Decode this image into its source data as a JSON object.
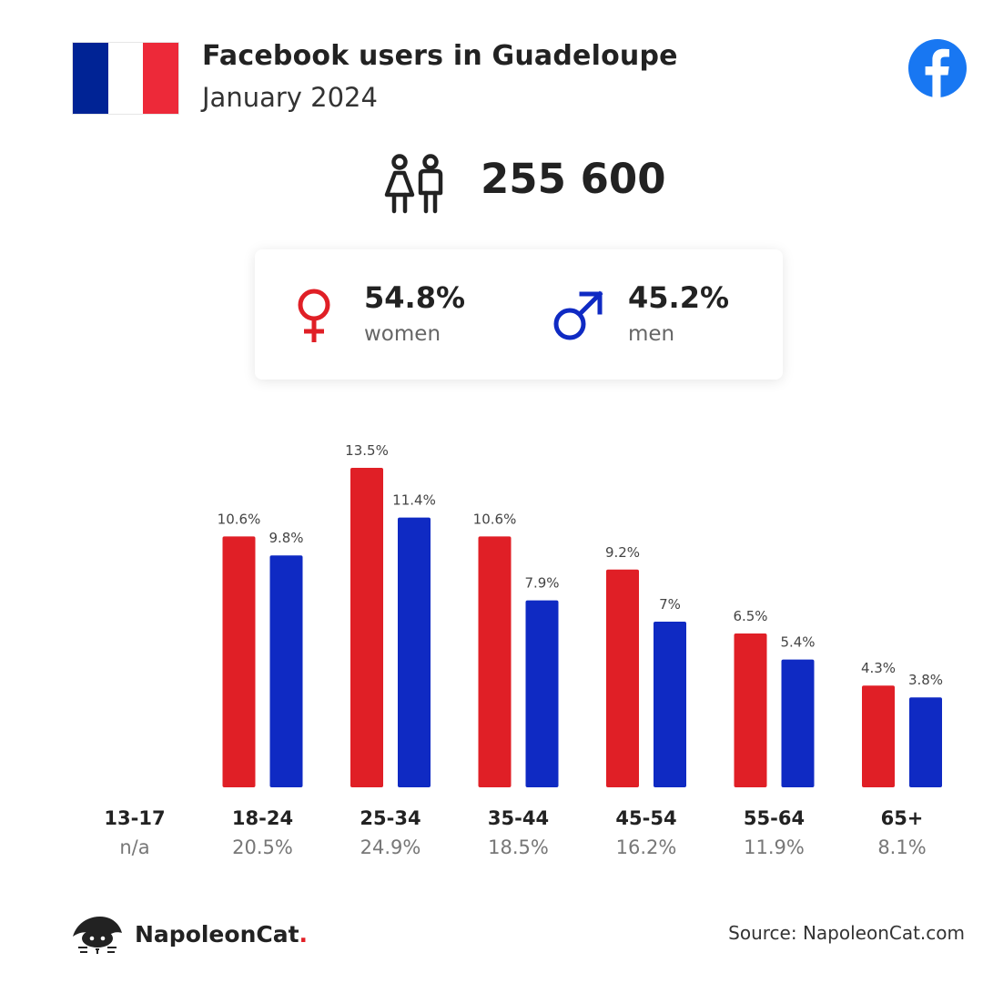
{
  "header": {
    "title": "Facebook users in Guadeloupe",
    "subtitle": "January 2024",
    "flag_colors": [
      "#002395",
      "#ffffff",
      "#ed2939"
    ],
    "platform_icon": "facebook-logo-icon"
  },
  "summary": {
    "total_users": "255 600",
    "users_icon": "people-icon"
  },
  "gender": {
    "women": {
      "percent": "54.8%",
      "label": "women",
      "icon": "female-symbol-icon",
      "color": "#e01f26"
    },
    "men": {
      "percent": "45.2%",
      "label": "men",
      "icon": "male-symbol-icon",
      "color": "#0f2ac3"
    }
  },
  "chart_data": {
    "type": "bar",
    "categories": [
      "13-17",
      "18-24",
      "25-34",
      "35-44",
      "45-54",
      "55-64",
      "65+"
    ],
    "category_totals": [
      "n/a",
      "20.5%",
      "24.9%",
      "18.5%",
      "16.2%",
      "11.9%",
      "8.1%"
    ],
    "series": [
      {
        "name": "women",
        "color": "#e01f26",
        "values": [
          null,
          10.6,
          13.5,
          10.6,
          9.2,
          6.5,
          4.3
        ],
        "labels": [
          "",
          "10.6%",
          "13.5%",
          "10.6%",
          "9.2%",
          "6.5%",
          "4.3%"
        ]
      },
      {
        "name": "men",
        "color": "#0f2ac3",
        "values": [
          null,
          9.8,
          11.4,
          7.9,
          7,
          5.4,
          3.8
        ],
        "labels": [
          "",
          "9.8%",
          "11.4%",
          "7.9%",
          "7%",
          "5.4%",
          "3.8%"
        ]
      }
    ],
    "title": "",
    "xlabel": "",
    "ylabel": "",
    "ylim": [
      0,
      13.5
    ],
    "grid": false
  },
  "footer": {
    "brand_name": "NapoleonCat",
    "brand_dot": ".",
    "brand_icon": "napoleoncat-logo-icon",
    "source": "Source: NapoleonCat.com"
  }
}
